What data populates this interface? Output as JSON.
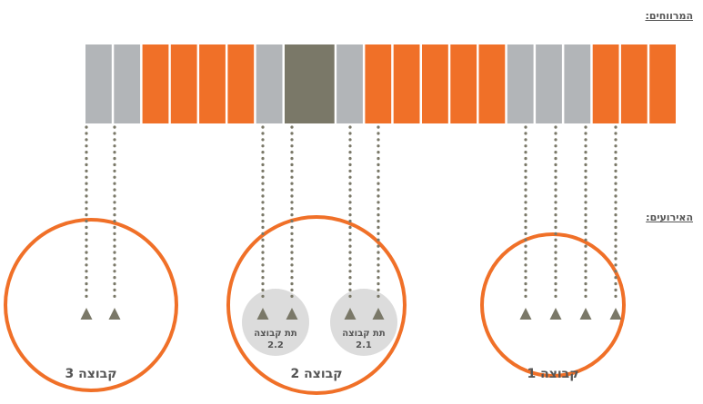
{
  "labels": {
    "gaps": "המרווחים:",
    "events": "האירועים:"
  },
  "colors": {
    "orange": "#f07028",
    "gray": "#b2b5b8",
    "dark": "#7a7868",
    "dots": "#7a7868",
    "subgroup_fill": "#dcdcdc",
    "text": "#555555"
  },
  "timeline": [
    {
      "kind": "gray"
    },
    {
      "kind": "gray"
    },
    {
      "kind": "orange"
    },
    {
      "kind": "orange"
    },
    {
      "kind": "orange"
    },
    {
      "kind": "orange"
    },
    {
      "kind": "gray"
    },
    {
      "kind": "dark"
    },
    {
      "kind": "gray"
    },
    {
      "kind": "orange"
    },
    {
      "kind": "orange"
    },
    {
      "kind": "orange"
    },
    {
      "kind": "orange"
    },
    {
      "kind": "orange"
    },
    {
      "kind": "gray"
    },
    {
      "kind": "gray"
    },
    {
      "kind": "gray"
    },
    {
      "kind": "orange"
    },
    {
      "kind": "orange"
    },
    {
      "kind": "orange"
    }
  ],
  "groups": [
    {
      "label": "קבוצה 1"
    },
    {
      "label": "קבוצה 2"
    },
    {
      "label": "קבוצה 3"
    }
  ],
  "subgroups": [
    {
      "line1": "תת קבוצה",
      "line2": "2.1"
    },
    {
      "line1": "תת קבוצה",
      "line2": "2.2"
    }
  ]
}
